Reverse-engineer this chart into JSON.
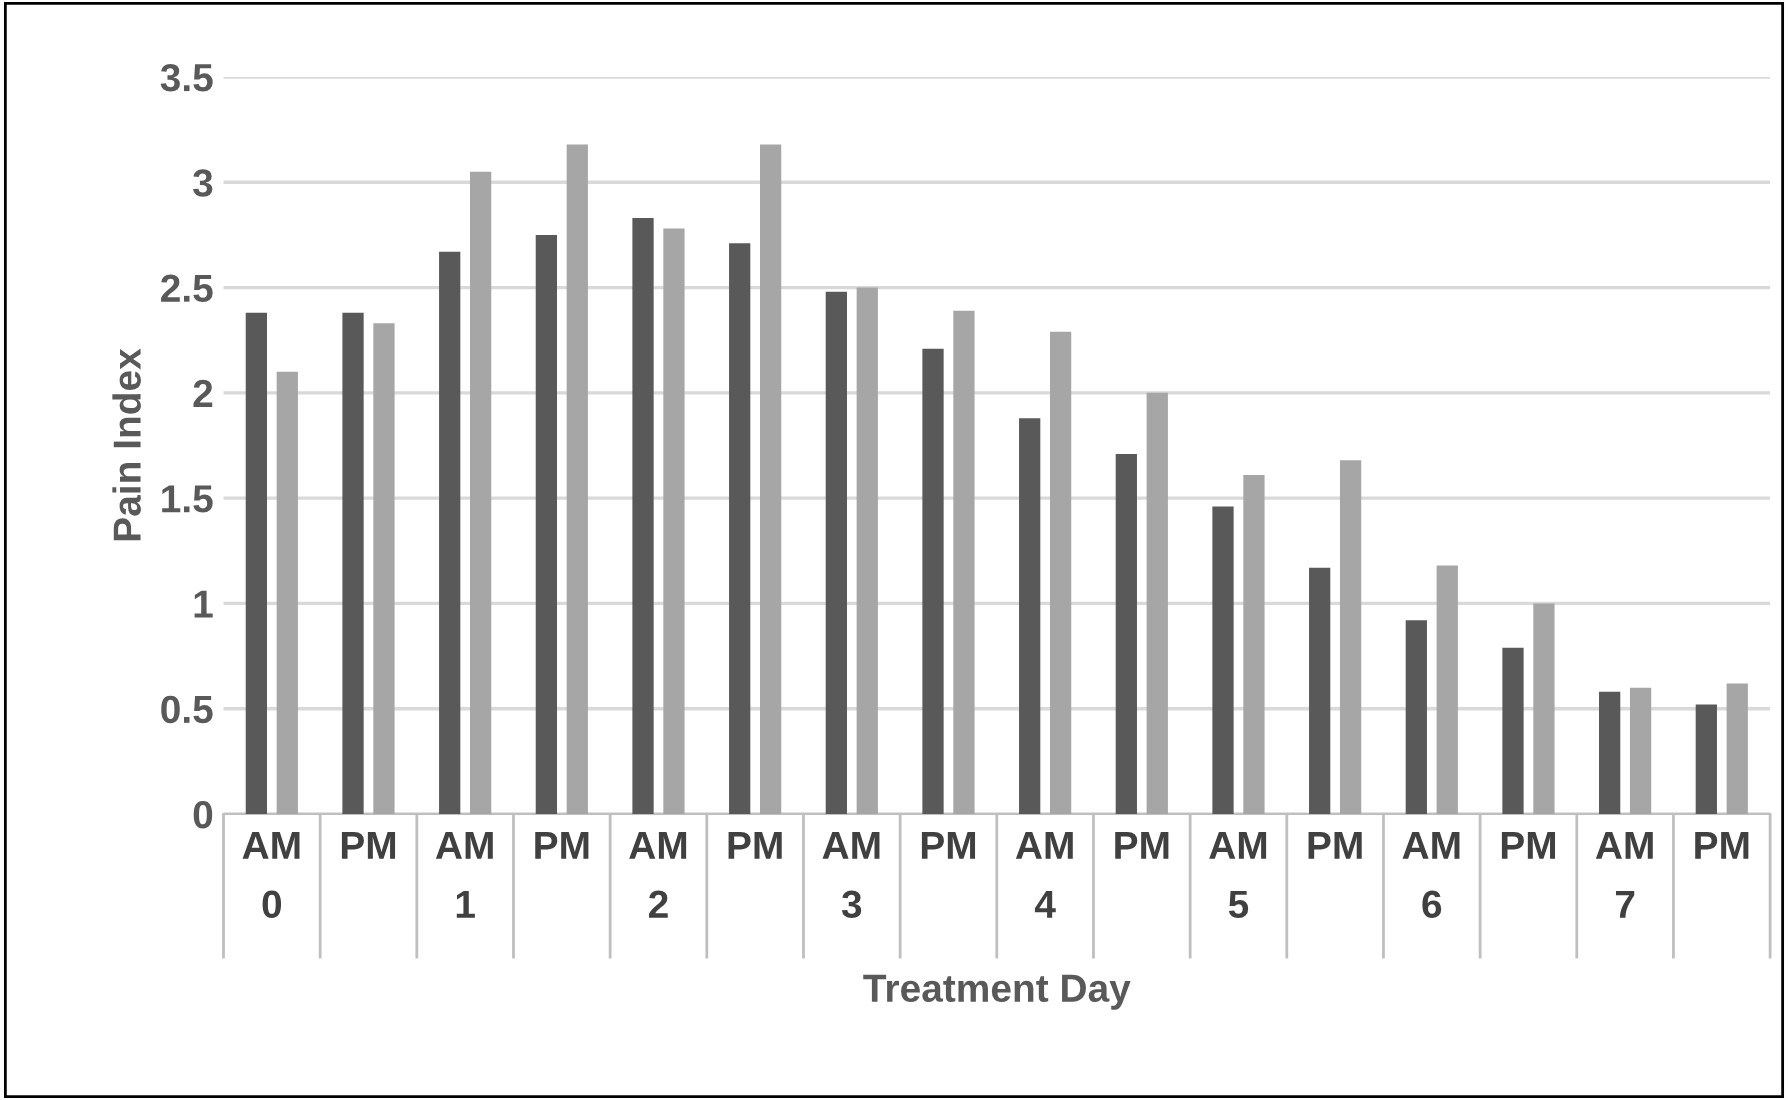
{
  "chart_data": {
    "type": "bar",
    "xlabel": "Treatment Day",
    "ylabel": "Pain Index",
    "categories": [
      "AM\n0",
      "PM",
      "AM\n1",
      "PM",
      "AM\n2",
      "PM",
      "AM\n3",
      "PM",
      "AM\n4",
      "PM",
      "AM\n5",
      "PM",
      "AM\n6",
      "PM",
      "AM\n7",
      "PM"
    ],
    "series": [
      {
        "color": "#595959",
        "values": [
          2.38,
          2.38,
          2.67,
          2.75,
          2.83,
          2.71,
          2.48,
          2.21,
          1.88,
          1.71,
          1.46,
          1.17,
          0.92,
          0.79,
          0.58,
          0.52
        ]
      },
      {
        "color": "#a6a6a6",
        "values": [
          2.1,
          2.33,
          3.05,
          3.18,
          2.78,
          3.18,
          2.5,
          2.39,
          2.29,
          2.0,
          1.61,
          1.68,
          1.18,
          1.0,
          0.6,
          0.62
        ]
      }
    ],
    "ylim": [
      0,
      3.5
    ],
    "yticks": [
      0,
      0.5,
      1,
      1.5,
      2,
      2.5,
      3,
      3.5
    ],
    "grid": "y",
    "legend": false
  }
}
